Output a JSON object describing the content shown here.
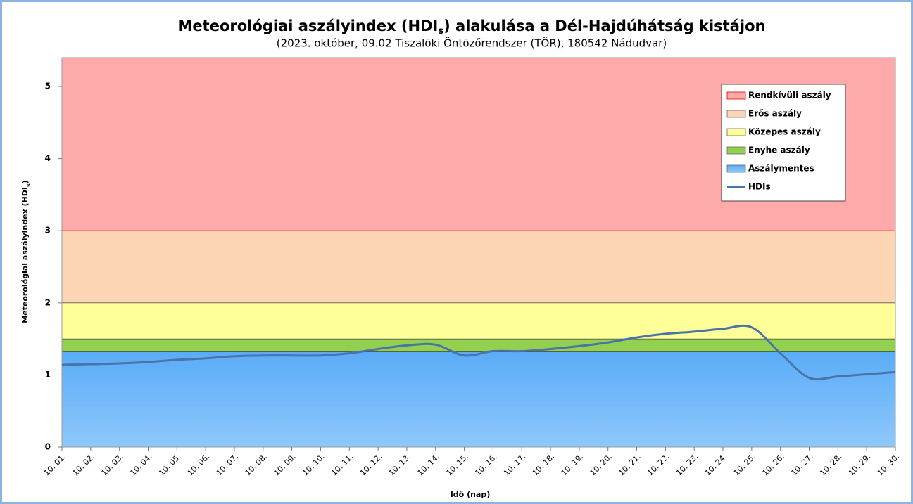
{
  "chart_data": {
    "type": "line",
    "title": [
      "Meteorológiai aszályindex (HDI",
      "s",
      ") alakulása a Dél-Hajdúhátság kistájon"
    ],
    "subtitle": "(2023. október, 09.02 Tiszalöki Öntözőrendszer (TÖR), 180542 Nádudvar)",
    "y_label": [
      "Meteorológiai aszályindex (HDI",
      "s",
      ")"
    ],
    "x_label": "Idő (nap)",
    "categories": [
      "10. 01.",
      "10. 02.",
      "10. 03.",
      "10. 04.",
      "10. 05.",
      "10. 06.",
      "10. 07.",
      "10. 08.",
      "10. 09.",
      "10. 10.",
      "10. 11.",
      "10. 12.",
      "10. 13.",
      "10. 14.",
      "10. 15.",
      "10. 16.",
      "10. 17.",
      "10. 18.",
      "10. 19.",
      "10. 20.",
      "10. 21.",
      "10. 22.",
      "10. 23.",
      "10. 24.",
      "10. 25.",
      "10. 26.",
      "10. 27.",
      "10. 28.",
      "10. 29.",
      "10. 30."
    ],
    "bands": [
      {
        "name": "Aszálymentes",
        "color": "#6cb6f9",
        "value": 1.32
      },
      {
        "name": "Enyhe aszály",
        "color": "#92d050",
        "value": 0.18
      },
      {
        "name": "Közepes aszály",
        "color": "#ffff99",
        "value": 0.5
      },
      {
        "name": "Erős aszály",
        "color": "#fcd5b4",
        "value": 1
      },
      {
        "name": "Rendkívüli aszály",
        "color": "#ffaaaa",
        "value": 2.4
      }
    ],
    "series": [
      {
        "name": "HDIs",
        "color": "#4a74a8",
        "values": [
          1.14,
          1.15,
          1.16,
          1.18,
          1.21,
          1.23,
          1.26,
          1.27,
          1.27,
          1.27,
          1.3,
          1.36,
          1.41,
          1.42,
          1.27,
          1.33,
          1.33,
          1.36,
          1.4,
          1.45,
          1.52,
          1.57,
          1.6,
          1.64,
          1.66,
          1.3,
          0.96,
          0.98,
          1.01,
          1.04
        ]
      }
    ],
    "ylim": [
      0,
      5.4
    ],
    "yticks": [
      0,
      1,
      2,
      3,
      4,
      5
    ],
    "legend": "top-right"
  }
}
